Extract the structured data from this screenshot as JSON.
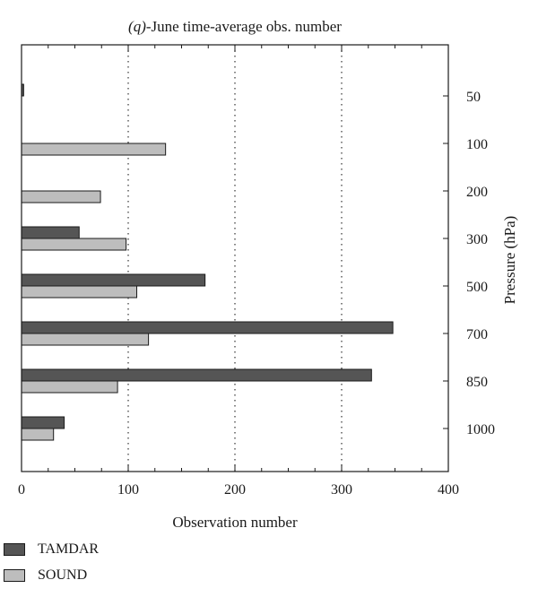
{
  "chart_data": {
    "type": "bar",
    "orientation": "horizontal",
    "title_prefix": "(q)",
    "title_rest": "-June time-average obs. number",
    "xlabel": "Observation number",
    "ylabel": "Pressure (hPa)",
    "xlim": [
      0,
      400
    ],
    "x_ticks": [
      0,
      100,
      200,
      300,
      400
    ],
    "categories": [
      "50",
      "100",
      "200",
      "300",
      "500",
      "700",
      "850",
      "1000"
    ],
    "series": [
      {
        "name": "TAMDAR",
        "color": "#555555",
        "values": [
          2,
          0,
          0,
          54,
          172,
          348,
          328,
          40
        ]
      },
      {
        "name": "SOUND",
        "color": "#bdbdbd",
        "values": [
          0,
          135,
          74,
          98,
          108,
          119,
          90,
          30
        ]
      }
    ],
    "grid": "vertical dotted",
    "legend_position": "bottom-left"
  }
}
